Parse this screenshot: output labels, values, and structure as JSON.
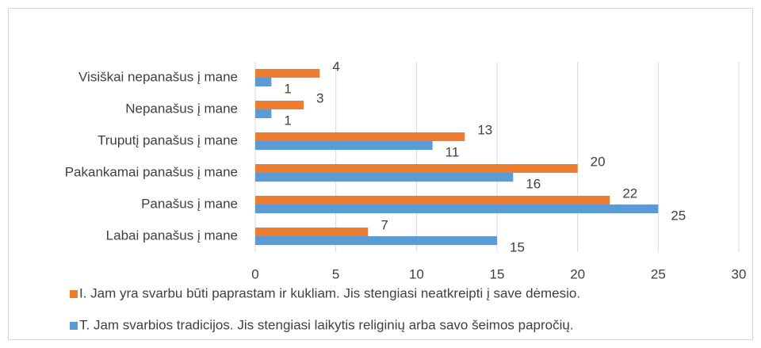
{
  "chart_data": {
    "type": "hbar",
    "categories": [
      "Visiškai nepanašus į mane",
      "Nepanašus į mane",
      "Truputį panašus į mane",
      "Pakankamai panašus į mane",
      "Panašus į mane",
      "Labai panašus į mane"
    ],
    "series": [
      {
        "name": "I. Jam yra svarbu būti paprastam ir kukliam. Jis stengiasi neatkreipti į save dėmesio.",
        "color": "#ed7d31",
        "values": [
          4,
          3,
          13,
          20,
          22,
          7
        ]
      },
      {
        "name": "T. Jam svarbios tradicijos. Jis stengiasi laikytis religinių arba savo šeimos papročių.",
        "color": "#5b9bd5",
        "values": [
          1,
          1,
          11,
          16,
          25,
          15
        ]
      }
    ],
    "xlim": [
      0,
      30
    ],
    "xticks": [
      0,
      5,
      10,
      15,
      20,
      25,
      30
    ],
    "grid": true
  }
}
